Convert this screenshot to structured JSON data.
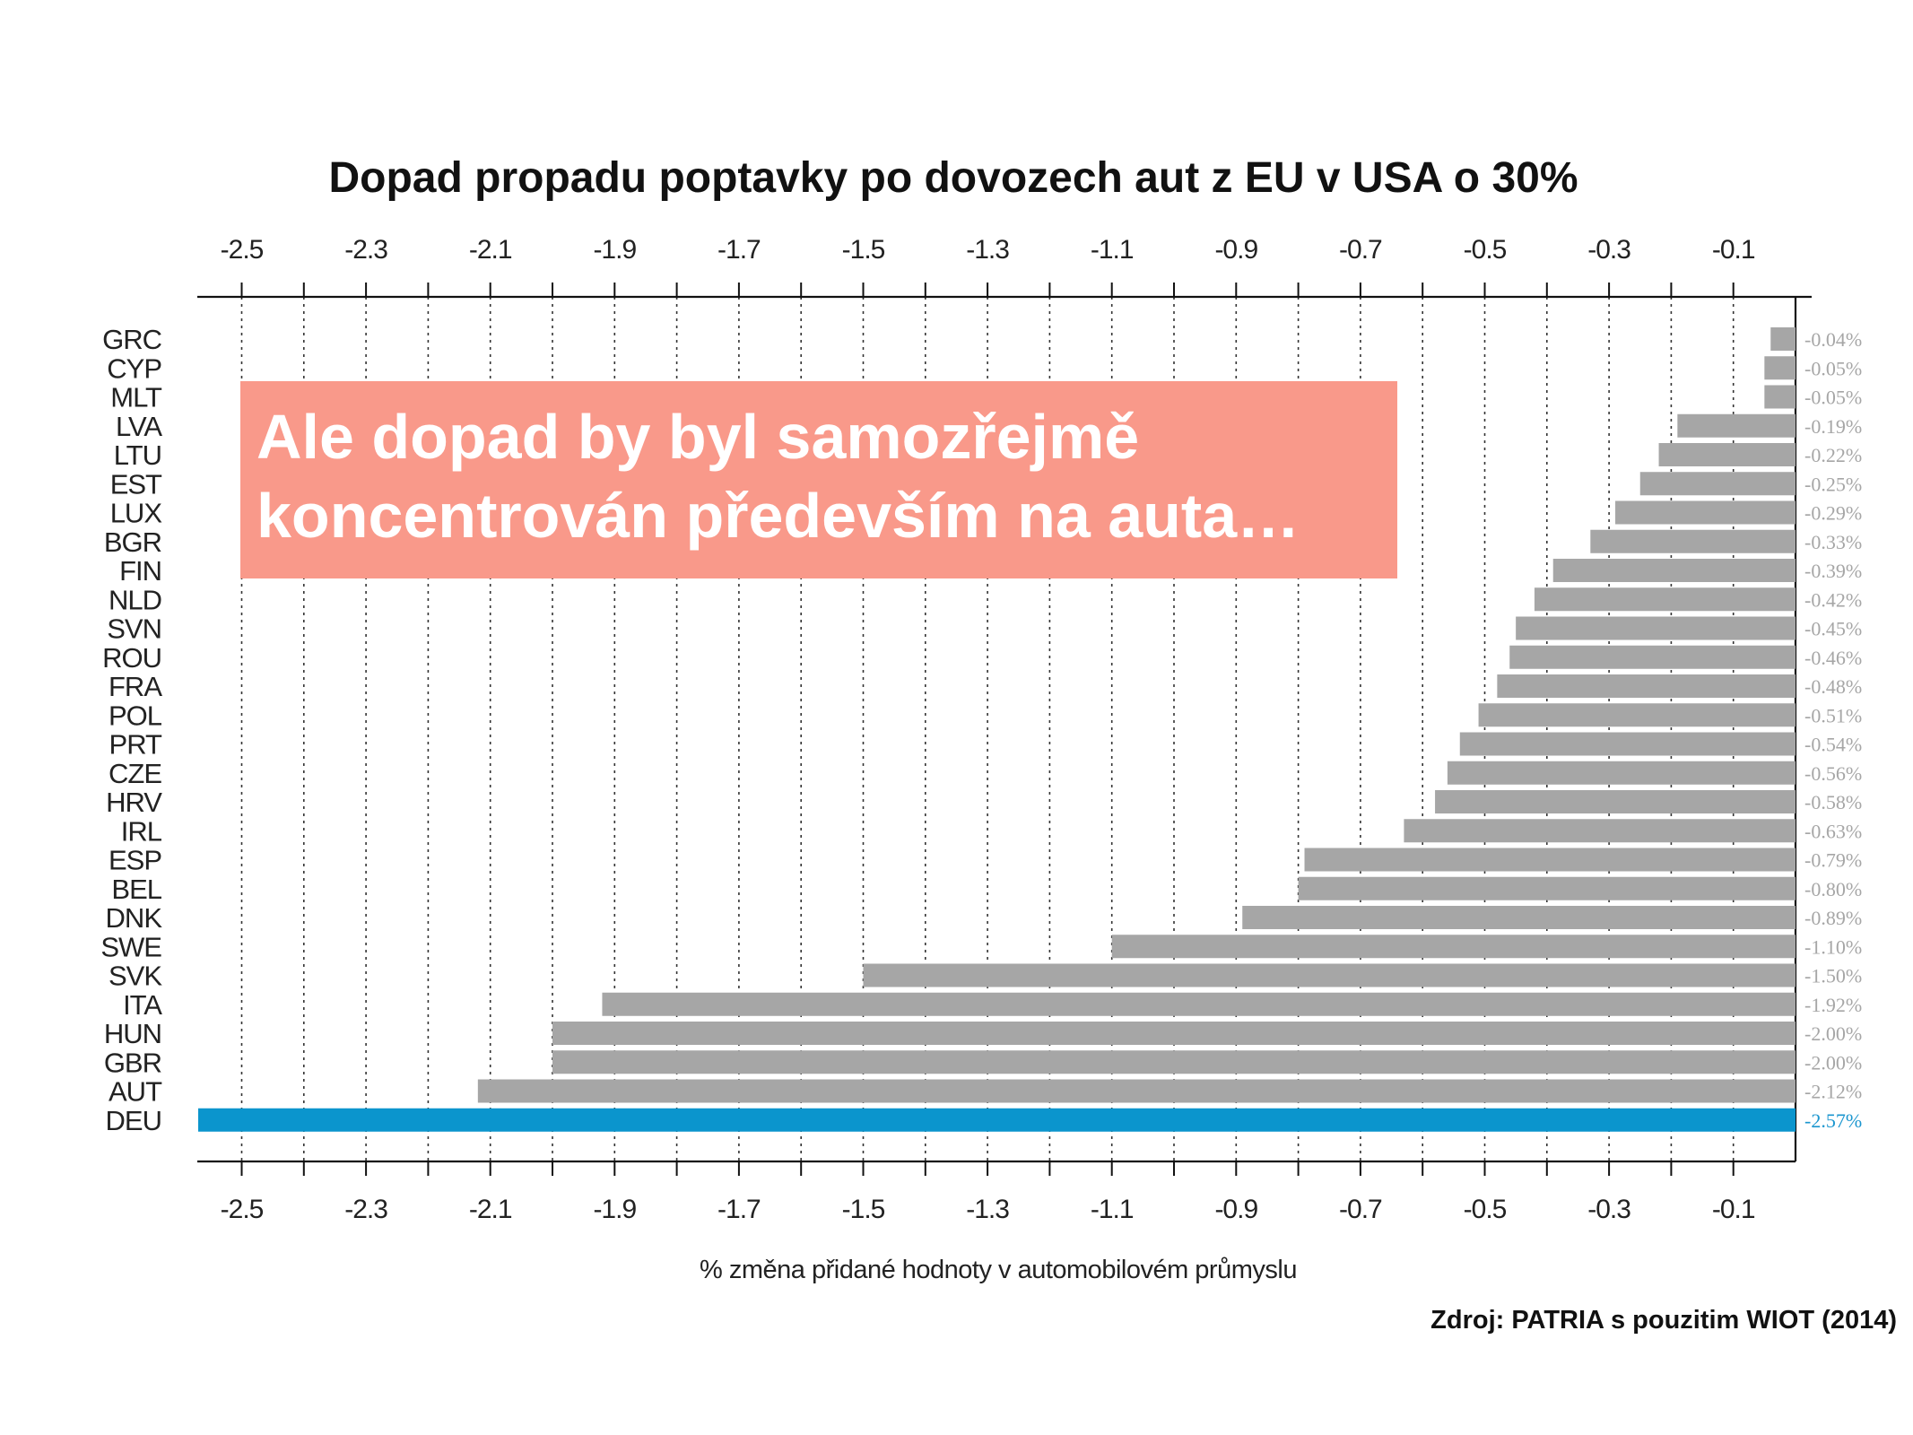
{
  "chart_data": {
    "type": "bar",
    "orientation": "horizontal",
    "title": "Dopad propadu poptavky po dovozech aut z EU v USA o 30%",
    "xlabel": "% změna přidané hodnoty v automobilovém průmyslu",
    "ylabel": "",
    "xlim": [
      -2.57,
      0
    ],
    "x_ticks": [
      -2.5,
      -2.3,
      -2.1,
      -1.9,
      -1.7,
      -1.5,
      -1.3,
      -1.1,
      -0.9,
      -0.7,
      -0.5,
      -0.3,
      -0.1
    ],
    "grid": "vertical dotted lines",
    "categories": [
      "GRC",
      "CYP",
      "MLT",
      "LVA",
      "LTU",
      "EST",
      "LUX",
      "BGR",
      "FIN",
      "NLD",
      "SVN",
      "ROU",
      "FRA",
      "POL",
      "PRT",
      "CZE",
      "HRV",
      "IRL",
      "ESP",
      "BEL",
      "DNK",
      "SWE",
      "SVK",
      "ITA",
      "HUN",
      "GBR",
      "AUT",
      "DEU"
    ],
    "values": [
      -0.04,
      -0.05,
      -0.05,
      -0.19,
      -0.22,
      -0.25,
      -0.29,
      -0.33,
      -0.39,
      -0.42,
      -0.45,
      -0.46,
      -0.48,
      -0.51,
      -0.54,
      -0.56,
      -0.58,
      -0.63,
      -0.79,
      -0.8,
      -0.89,
      -1.1,
      -1.5,
      -1.92,
      -2.0,
      -2.0,
      -2.12,
      -2.57
    ],
    "value_labels": [
      "-0.04%",
      "-0.05%",
      "-0.05%",
      "-0.19%",
      "-0.22%",
      "-0.25%",
      "-0.29%",
      "-0.33%",
      "-0.39%",
      "-0.42%",
      "-0.45%",
      "-0.46%",
      "-0.48%",
      "-0.51%",
      "-0.54%",
      "-0.56%",
      "-0.58%",
      "-0.63%",
      "-0.79%",
      "-0.80%",
      "-0.89%",
      "-1.10%",
      "-1.50%",
      "-1.92%",
      "-2.00%",
      "-2.00%",
      "-2.12%",
      "-2.57%"
    ],
    "highlight": "DEU",
    "colors": {
      "bar": "#a6a6a6",
      "highlight": "#0b95cd",
      "value_label": "#a6a6a6",
      "highlight_label": "#1b96cf"
    }
  },
  "callout": {
    "lines": [
      "Ale dopad by byl samozřejmě",
      "koncentrován především na auta…"
    ],
    "background": "#f9998a",
    "text_color": "#ffffff"
  },
  "source": "Zdroj: PATRIA s pouzitim WIOT (2014)"
}
